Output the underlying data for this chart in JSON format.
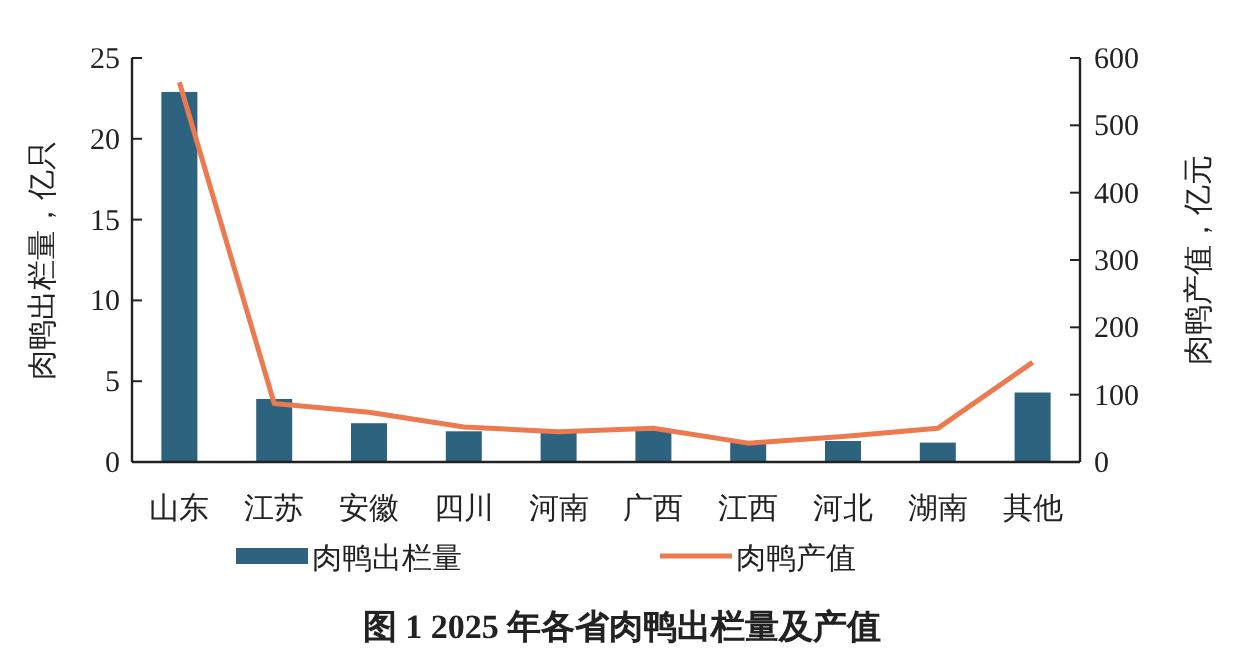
{
  "chart_data": {
    "type": "bar",
    "title": "图 1 2025 年各省肉鸭出栏量及产值",
    "categories": [
      "山东",
      "江苏",
      "安徽",
      "四川",
      "河南",
      "广西",
      "江西",
      "河北",
      "湖南",
      "其他"
    ],
    "ylabel": "肉鸭出栏量，亿只",
    "y2label": "肉鸭产值，亿元",
    "ylim": [
      0,
      25
    ],
    "yticks": [
      0,
      5,
      10,
      15,
      20,
      25
    ],
    "y2lim": [
      0,
      600
    ],
    "y2ticks": [
      0,
      100,
      200,
      300,
      400,
      500,
      600
    ],
    "legend": "bottom",
    "grid": false,
    "series": [
      {
        "name": "肉鸭出栏量",
        "color": "#2e6380",
        "values": [
          22.9,
          3.9,
          2.4,
          1.9,
          1.9,
          2.0,
          1.2,
          1.3,
          1.2,
          4.3
        ]
      },
      {
        "name": "肉鸭产值",
        "type": "line",
        "axis": "y2",
        "color": "#ec7a4e",
        "values": [
          564,
          87,
          74,
          52,
          45,
          50,
          28,
          38,
          50,
          148
        ]
      }
    ]
  }
}
